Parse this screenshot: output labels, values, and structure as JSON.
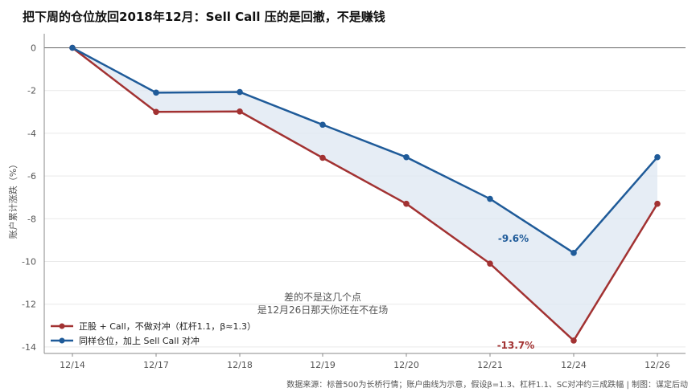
{
  "title": "把下周的仓位放回2018年12月：Sell Call 压的是回撤，不是赚钱",
  "footer": "数据来源：标普500为长桥行情；账户曲线为示意，假设β=1.3、杠杆1.1、SC对冲约三成跌幅 | 制图：谋定后动",
  "chart_data": {
    "type": "line",
    "categories": [
      "12/14",
      "12/17",
      "12/18",
      "12/19",
      "12/20",
      "12/21",
      "12/24",
      "12/26"
    ],
    "ylabel": "账户累计涨跌（%）",
    "ylim": [
      -14.5,
      0.7
    ],
    "yticks": [
      0,
      -2,
      -4,
      -6,
      -8,
      -10,
      -12,
      -14
    ],
    "series": [
      {
        "name": "正股 + Call，不做对冲（杠杆1.1，β≈1.3）",
        "color": "#a23232",
        "values": [
          0,
          -3.0,
          -2.98,
          -5.15,
          -7.3,
          -10.1,
          -13.7,
          -7.3
        ]
      },
      {
        "name": "同样仓位，加上 Sell Call 对冲",
        "color": "#1f5b99",
        "values": [
          0,
          -2.1,
          -2.07,
          -3.6,
          -5.12,
          -7.07,
          -9.6,
          -5.12
        ]
      }
    ],
    "fill_between": {
      "color": "#dde7f2"
    },
    "annotations": [
      {
        "text": "-9.6%",
        "series": 1,
        "index": 6,
        "color": "#1f5b99"
      },
      {
        "text": "-13.7%",
        "series": 0,
        "index": 6,
        "color": "#a23232"
      },
      {
        "text": "差的不是这几个点",
        "color": "#555555"
      },
      {
        "text": "是12月26日那天你还在不在场",
        "color": "#555555"
      }
    ],
    "legend": "bottom-left",
    "grid": "horizontal"
  }
}
